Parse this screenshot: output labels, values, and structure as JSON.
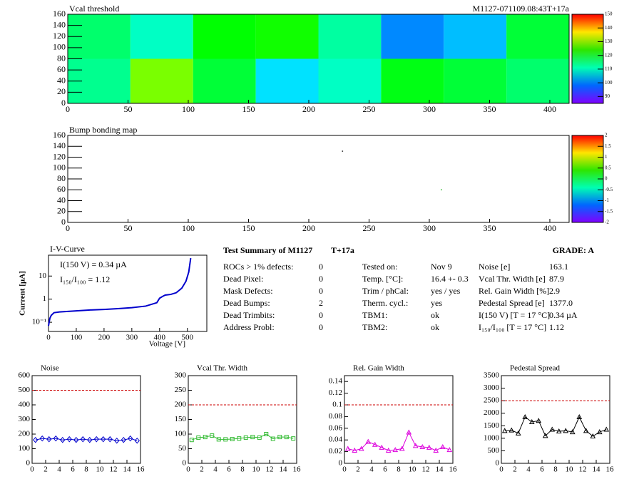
{
  "chart_data": [
    {
      "type": "heatmap",
      "title": "Vcal threshold",
      "subtitle": "M1127-071109.08:43T+17a",
      "xlim": [
        0,
        416
      ],
      "ylim": [
        0,
        160
      ],
      "xticks": [
        0,
        50,
        100,
        150,
        200,
        250,
        300,
        350,
        400
      ],
      "yticks": [
        0,
        20,
        40,
        60,
        80,
        100,
        120,
        140,
        160
      ],
      "x_edges": [
        0,
        52,
        104,
        156,
        208,
        260,
        312,
        364,
        416
      ],
      "y_edges": [
        0,
        80,
        160
      ],
      "values": [
        [
          113,
          128,
          118,
          105,
          110,
          120,
          118,
          115
        ],
        [
          115,
          110,
          121,
          122,
          112,
          100,
          103,
          118
        ]
      ],
      "zlim": [
        85,
        150
      ],
      "zticks": [
        90,
        100,
        110,
        120,
        130,
        140,
        150
      ]
    },
    {
      "type": "scatter",
      "title": "Bump bonding map",
      "xlim": [
        0,
        416
      ],
      "ylim": [
        0,
        160
      ],
      "xticks": [
        0,
        50,
        100,
        150,
        200,
        250,
        300,
        350,
        400
      ],
      "yticks": [
        0,
        20,
        40,
        60,
        80,
        100,
        120,
        140,
        160
      ],
      "x": [
        228,
        310
      ],
      "y": [
        131,
        60
      ],
      "color": "#333333",
      "zlim": [
        -2,
        2
      ],
      "zticks": [
        -2,
        -1.5,
        -1,
        -0.5,
        0,
        0.5,
        1,
        1.5,
        2
      ]
    },
    {
      "type": "line",
      "title": "I-V-Curve",
      "x_label": "Voltage [V]",
      "y_label": "Current [µA]",
      "log_y": true,
      "annotations": [
        "I(150 V) = 0.34 µA",
        "I₁₅₀/I₁₀₀ =  1.12"
      ],
      "xlim": [
        0,
        570
      ],
      "ylim": [
        0.04,
        80
      ],
      "xticks": [
        0,
        100,
        200,
        300,
        400,
        500
      ],
      "yticks": [
        {
          "value": 0.1,
          "label": "10⁻¹"
        },
        1,
        10
      ],
      "x": [
        0,
        5,
        10,
        20,
        40,
        80,
        150,
        200,
        250,
        300,
        350,
        390,
        400,
        410,
        420,
        440,
        460,
        480,
        495,
        505,
        512
      ],
      "series": [
        {
          "color": "#0000cc",
          "marker": "none",
          "values": [
            0.07,
            0.15,
            0.2,
            0.26,
            0.28,
            0.3,
            0.34,
            0.36,
            0.39,
            0.43,
            0.5,
            0.7,
            1.1,
            1.3,
            1.5,
            1.6,
            1.9,
            3,
            6,
            15,
            60
          ]
        }
      ]
    },
    {
      "type": "line",
      "title": "Noise",
      "xlim": [
        0,
        16
      ],
      "ylim": [
        0,
        600
      ],
      "xticks": [
        0,
        2,
        4,
        6,
        8,
        10,
        12,
        14,
        16
      ],
      "yticks": [
        0,
        100,
        200,
        300,
        400,
        500,
        600
      ],
      "limit": 500,
      "x": [
        0.5,
        1.5,
        2.5,
        3.5,
        4.5,
        5.5,
        6.5,
        7.5,
        8.5,
        9.5,
        10.5,
        11.5,
        12.5,
        13.5,
        14.5,
        15.5
      ],
      "series": [
        {
          "color": "#0000cc",
          "marker": "diamond",
          "values": [
            160,
            170,
            165,
            170,
            160,
            165,
            160,
            165,
            160,
            165,
            165,
            165,
            155,
            160,
            170,
            155
          ]
        }
      ]
    },
    {
      "type": "line",
      "title": "Vcal Thr. Width",
      "xlim": [
        0,
        16
      ],
      "ylim": [
        0,
        300
      ],
      "xticks": [
        0,
        2,
        4,
        6,
        8,
        10,
        12,
        14,
        16
      ],
      "yticks": [
        0,
        50,
        100,
        150,
        200,
        250,
        300
      ],
      "limit": 200,
      "x": [
        0.5,
        1.5,
        2.5,
        3.5,
        4.5,
        5.5,
        6.5,
        7.5,
        8.5,
        9.5,
        10.5,
        11.5,
        12.5,
        13.5,
        14.5,
        15.5
      ],
      "series": [
        {
          "color": "#33bb33",
          "marker": "square",
          "values": [
            80,
            88,
            90,
            95,
            82,
            82,
            83,
            85,
            88,
            90,
            88,
            100,
            84,
            90,
            90,
            85
          ]
        }
      ]
    },
    {
      "type": "line",
      "title": "Rel. Gain Width",
      "xlim": [
        0,
        16
      ],
      "ylim": [
        0,
        0.15
      ],
      "xticks": [
        0,
        2,
        4,
        6,
        8,
        10,
        12,
        14,
        16
      ],
      "yticks": [
        0,
        0.02,
        0.04,
        0.06,
        0.08,
        0.1,
        0.12,
        0.14
      ],
      "limit": 0.1,
      "x": [
        0.5,
        1.5,
        2.5,
        3.5,
        4.5,
        5.5,
        6.5,
        7.5,
        8.5,
        9.5,
        10.5,
        11.5,
        12.5,
        13.5,
        14.5,
        15.5
      ],
      "series": [
        {
          "color": "#dd00dd",
          "marker": "triangle",
          "values": [
            0.025,
            0.022,
            0.025,
            0.037,
            0.032,
            0.027,
            0.022,
            0.023,
            0.025,
            0.053,
            0.03,
            0.028,
            0.027,
            0.022,
            0.028,
            0.023
          ]
        }
      ]
    },
    {
      "type": "line",
      "title": "Pedestal Spread",
      "xlim": [
        0,
        16
      ],
      "ylim": [
        0,
        3500
      ],
      "xticks": [
        0,
        2,
        4,
        6,
        8,
        10,
        12,
        14,
        16
      ],
      "yticks": [
        0,
        500,
        1000,
        1500,
        2000,
        2500,
        3000,
        3500
      ],
      "limit": 2500,
      "x": [
        0.5,
        1.5,
        2.5,
        3.5,
        4.5,
        5.5,
        6.5,
        7.5,
        8.5,
        9.5,
        10.5,
        11.5,
        12.5,
        13.5,
        14.5,
        15.5
      ],
      "series": [
        {
          "color": "#000000",
          "marker": "triangle",
          "values": [
            1300,
            1320,
            1200,
            1850,
            1650,
            1700,
            1100,
            1350,
            1280,
            1300,
            1250,
            1850,
            1300,
            1080,
            1250,
            1350
          ]
        }
      ]
    }
  ],
  "summary": {
    "title": "Test Summary of M1127",
    "tag": "T+17a",
    "grade": "GRADE:  A",
    "left": [
      [
        "ROCs > 1% defects:",
        "0"
      ],
      [
        "Dead Pixel:",
        "0"
      ],
      [
        "Mask Defects:",
        "0"
      ],
      [
        "Dead Bumps:",
        "2"
      ],
      [
        "Dead Trimbits:",
        "0"
      ],
      [
        "Address Probl:",
        "0"
      ]
    ],
    "middle": [
      [
        "Tested on:",
        "Nov 9"
      ],
      [
        "Temp. [°C]:",
        "16.4 +- 0.3"
      ],
      [
        "Trim / phCal:",
        "yes / yes"
      ],
      [
        "Therm. cycl.:",
        "yes"
      ],
      [
        "TBM1:",
        "ok"
      ],
      [
        "TBM2:",
        "ok"
      ]
    ],
    "right": [
      [
        "Noise [e]",
        "163.1"
      ],
      [
        "Vcal Thr. Width [e]",
        "87.9"
      ],
      [
        "Rel. Gain Width [%]",
        "2.9"
      ],
      [
        "Pedestal Spread [e]",
        "1377.0"
      ],
      [
        "I(150 V) [T = 17 °C]",
        "0.34 µA"
      ],
      [
        "I₁₅₀/I₁₀₀  [T = 17 °C]",
        "1.12"
      ]
    ]
  }
}
